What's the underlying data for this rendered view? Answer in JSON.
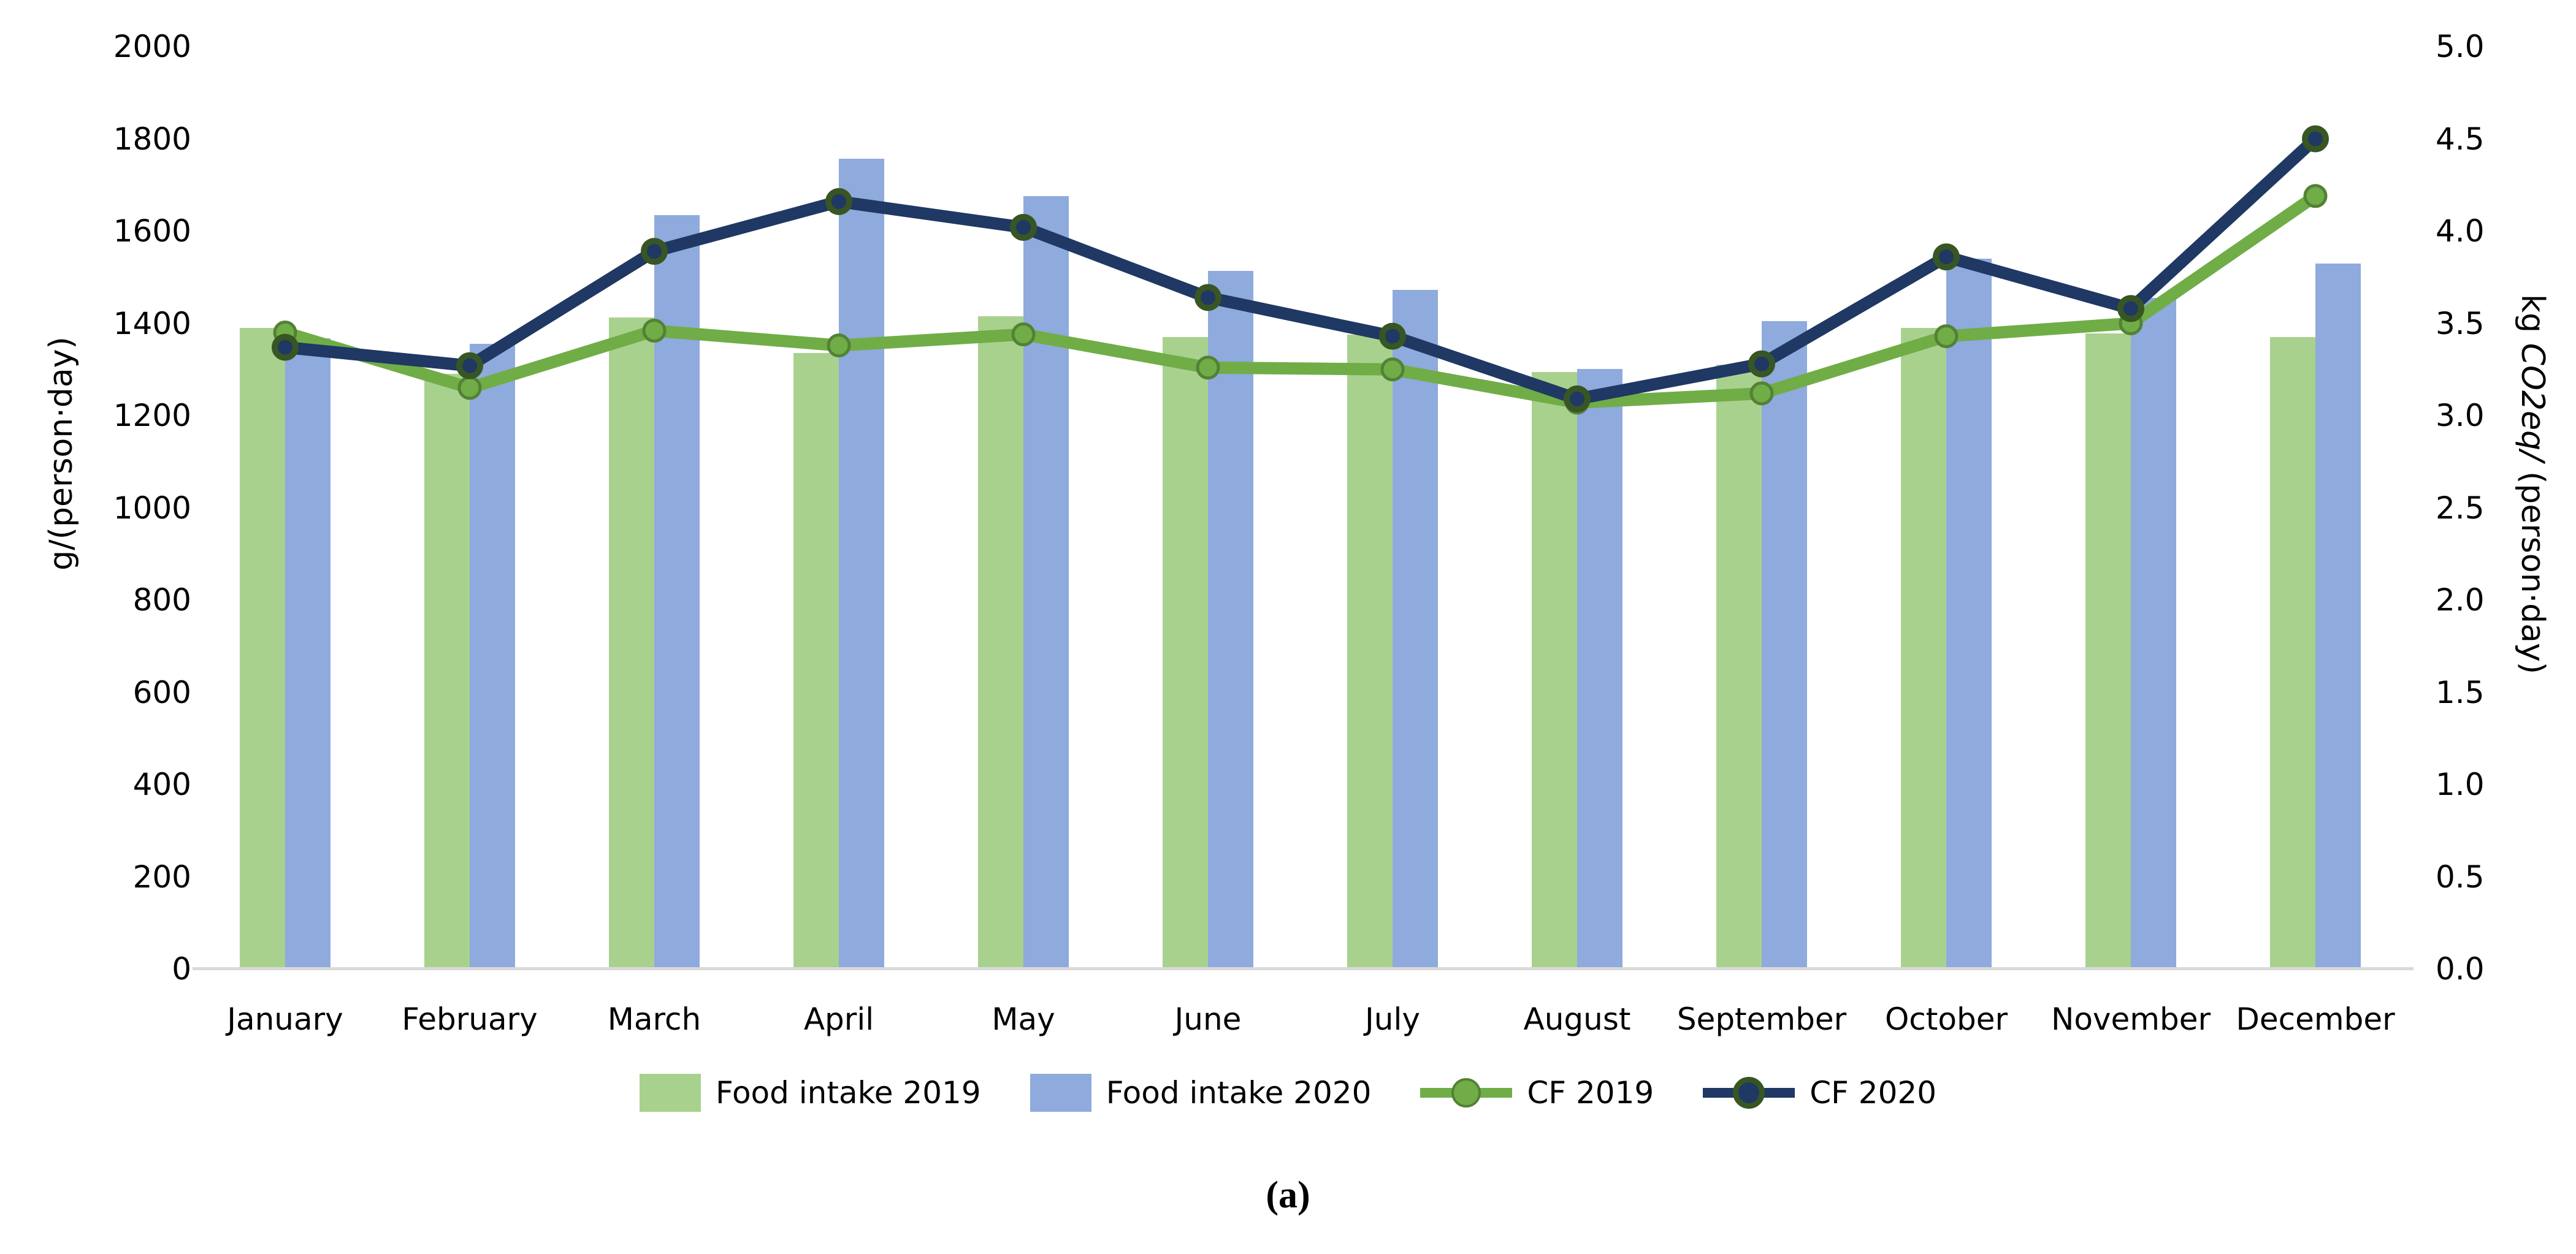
{
  "figure": {
    "caption": "(a)"
  },
  "chart_data": {
    "type": "bar+line combo",
    "categories": [
      "January",
      "February",
      "March",
      "April",
      "May",
      "June",
      "July",
      "August",
      "September",
      "October",
      "November",
      "December"
    ],
    "series": [
      {
        "name": "Food intake 2019",
        "type": "bar",
        "axis": "left",
        "color": "#a9d18e",
        "values": [
          1390,
          1290,
          1412,
          1335,
          1415,
          1370,
          1375,
          1295,
          1310,
          1390,
          1378,
          1370
        ]
      },
      {
        "name": "Food intake 2020",
        "type": "bar",
        "axis": "left",
        "color": "#8faadc",
        "values": [
          1368,
          1356,
          1635,
          1757,
          1676,
          1513,
          1472,
          1301,
          1404,
          1540,
          1455,
          1530
        ]
      },
      {
        "name": "CF 2019",
        "type": "line",
        "axis": "right",
        "color": "#70ad47",
        "marker_fill": "#70ad47",
        "marker_stroke": "#538135",
        "values": [
          3.45,
          3.15,
          3.46,
          3.38,
          3.44,
          3.26,
          3.25,
          3.07,
          3.12,
          3.43,
          3.5,
          4.19
        ]
      },
      {
        "name": "CF 2020",
        "type": "line",
        "axis": "right",
        "color": "#1f3864",
        "marker_fill": "#1f3864",
        "marker_stroke": "#375623",
        "values": [
          3.37,
          3.27,
          3.89,
          4.16,
          4.02,
          3.64,
          3.43,
          3.09,
          3.28,
          3.86,
          3.58,
          4.5
        ]
      }
    ],
    "left_axis": {
      "title": "g/(person·day)",
      "min": 0,
      "max": 2000,
      "step": 200,
      "tick_labels": [
        "0",
        "200",
        "400",
        "600",
        "800",
        "1000",
        "1200",
        "1400",
        "1600",
        "1800",
        "2000"
      ]
    },
    "right_axis": {
      "title": "kg CO2eq/ (person·day)",
      "title_parts": [
        {
          "text": "kg ",
          "italic": false
        },
        {
          "text": "CO2eq/",
          "italic": true
        },
        {
          "text": " (person·day)",
          "italic": false
        }
      ],
      "min": 0,
      "max": 5,
      "step": 0.5,
      "tick_labels": [
        "0.0",
        "0.5",
        "1.0",
        "1.5",
        "2.0",
        "2.5",
        "3.0",
        "3.5",
        "4.0",
        "4.5",
        "5.0"
      ]
    },
    "legend": [
      "Food intake 2019",
      "Food intake 2020",
      "CF 2019",
      "CF 2020"
    ],
    "legend_position": "bottom",
    "grid": false,
    "background": "#ffffff",
    "axis_line_color": "#d9d9d9"
  }
}
